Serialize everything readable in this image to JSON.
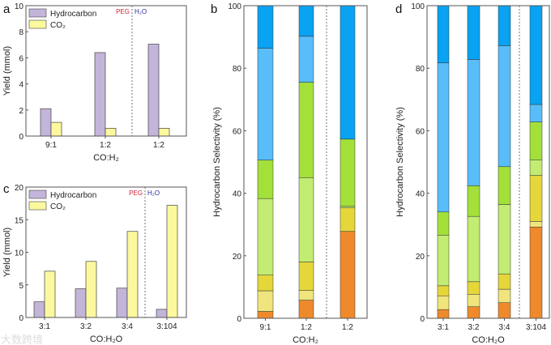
{
  "colors": {
    "hydrocarbon": "#c3b5d9",
    "co2": "#fcf89e",
    "peg": "#d0243a",
    "h2o": "#2a2a9a",
    "segments": [
      "#ee8a2c",
      "#efe57c",
      "#e5d73a",
      "#c2ec72",
      "#a3e03a",
      "#58bdf8",
      "#0aa2f2"
    ]
  },
  "chart_data": [
    {
      "panel": "a",
      "type": "bar",
      "ylabel": "Yield (mmol)",
      "xlabel": "CO:H₂",
      "ylim": [
        0,
        10
      ],
      "yticks": [
        0,
        2,
        4,
        6,
        8,
        10
      ],
      "categories": [
        "9:1",
        "1:2",
        "1:2"
      ],
      "divider_after": 1,
      "annot": [
        "PEG",
        "H₂O"
      ],
      "series": [
        {
          "name": "Hydrocarbon",
          "values": [
            2.1,
            6.4,
            7.05
          ]
        },
        {
          "name": "CO₂",
          "values": [
            1.05,
            0.6,
            0.6
          ]
        }
      ],
      "legend": "top-left"
    },
    {
      "panel": "b",
      "type": "bar",
      "stacked": true,
      "ylabel": "Hydrocarbon Selectivity (%)",
      "xlabel": "CO:H₂",
      "ylim": [
        0,
        100
      ],
      "yticks": [
        0,
        20,
        40,
        60,
        80,
        100
      ],
      "categories": [
        "9:1",
        "1:2",
        "1:2"
      ],
      "divider_after": 1,
      "segments": [
        [
          2.2,
          6.6,
          5.0,
          24.5,
          12.3,
          35.8,
          13.6
        ],
        [
          5.8,
          3.1,
          9.1,
          27.0,
          30.5,
          14.7,
          9.8
        ],
        [
          27.8,
          0,
          7.5,
          0.5,
          21.5,
          0,
          42.7
        ]
      ]
    },
    {
      "panel": "c",
      "type": "bar",
      "ylabel": "Yield (mmol)",
      "xlabel": "CO:H₂O",
      "ylim": [
        0,
        20
      ],
      "yticks": [
        0,
        5,
        10,
        15,
        20
      ],
      "categories": [
        "3:1",
        "3:2",
        "3:4",
        "3:104"
      ],
      "divider_after": 2,
      "annot": [
        "PEG",
        "H₂O"
      ],
      "series": [
        {
          "name": "Hydrocarbon",
          "values": [
            2.4,
            4.4,
            4.5,
            1.25
          ]
        },
        {
          "name": "CO₂",
          "values": [
            7.1,
            8.6,
            13.2,
            17.2
          ]
        }
      ],
      "legend": "top-left"
    },
    {
      "panel": "d",
      "type": "bar",
      "stacked": true,
      "ylabel": "Hydrocarbon Selectivity (%)",
      "xlabel": "CO:H₂O",
      "ylim": [
        0,
        100
      ],
      "yticks": [
        0,
        20,
        40,
        60,
        80,
        100
      ],
      "categories": [
        "3:1",
        "3:2",
        "3:4",
        "3:104"
      ],
      "divider_after": 2,
      "segments": [
        [
          2.8,
          4.4,
          3.2,
          16.2,
          7.4,
          47.7,
          18.3
        ],
        [
          3.7,
          4.0,
          4.0,
          20.9,
          9.8,
          40.4,
          17.2
        ],
        [
          5.0,
          4.3,
          4.9,
          22.2,
          12.1,
          38.7,
          12.8
        ],
        [
          29.2,
          1.8,
          14.7,
          5.0,
          12.1,
          5.6,
          31.6
        ]
      ]
    }
  ],
  "watermark": "大数跨境"
}
